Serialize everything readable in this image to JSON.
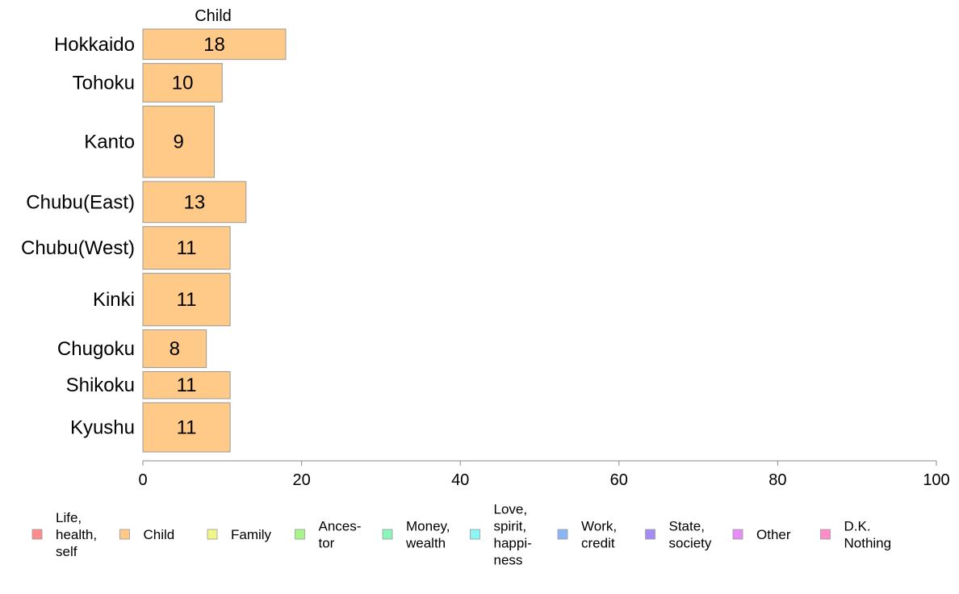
{
  "chart_data": {
    "type": "bar",
    "orientation": "horizontal",
    "column_header": "Child",
    "categories": [
      "Hokkaido",
      "Tohoku",
      "Kanto",
      "Chubu(East)",
      "Chubu(West)",
      "Kinki",
      "Chugoku",
      "Shikoku",
      "Kyushu"
    ],
    "category_weights": [
      37,
      47,
      87,
      50,
      52,
      64,
      46,
      33,
      60
    ],
    "series": [
      {
        "name": "Child",
        "color": "#ffc987",
        "values": [
          18,
          10,
          9,
          13,
          11,
          11,
          8,
          11,
          11
        ]
      }
    ],
    "xlim": [
      0,
      100
    ],
    "xticks": [
      0,
      20,
      40,
      60,
      80,
      100
    ],
    "grid": false,
    "legend_position": "bottom",
    "legend": [
      {
        "lines": [
          "Life,",
          "health,",
          "self"
        ],
        "color": "#ff8c8c"
      },
      {
        "lines": [
          "Child"
        ],
        "color": "#ffc987"
      },
      {
        "lines": [
          "Family"
        ],
        "color": "#f0f58a"
      },
      {
        "lines": [
          "Ances-",
          "tor"
        ],
        "color": "#a8f58a"
      },
      {
        "lines": [
          "Money,",
          "wealth"
        ],
        "color": "#8cf5bb"
      },
      {
        "lines": [
          "Love,",
          "spirit,",
          "happi-",
          "ness"
        ],
        "color": "#8cf5f5"
      },
      {
        "lines": [
          "Work,",
          "credit"
        ],
        "color": "#8cb5f5"
      },
      {
        "lines": [
          "State,",
          "society"
        ],
        "color": "#a58cf5"
      },
      {
        "lines": [
          "Other"
        ],
        "color": "#e58cf5"
      },
      {
        "lines": [
          "D.K.",
          "Nothing"
        ],
        "color": "#ff8cc8"
      }
    ]
  }
}
